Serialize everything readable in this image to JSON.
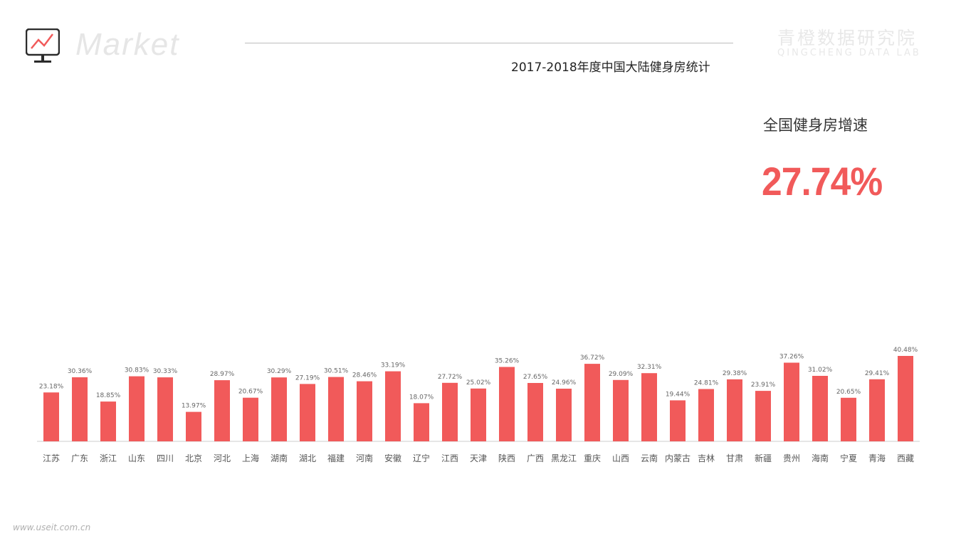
{
  "header": {
    "brand": "Market",
    "title": "2017-2018年度中国大陆健身房统计",
    "lab_name_cn": "青橙数据研究院",
    "lab_name_en": "QINGCHENG DATA LAB"
  },
  "kpi": {
    "label": "全国健身房增速",
    "value": "27.74%"
  },
  "footer": "www.useit.com.cn",
  "colors": {
    "bar": "#f15a5a",
    "accent": "#f15a5a",
    "axis": "#cccccc"
  },
  "chart_data": {
    "type": "bar",
    "title": "",
    "xlabel": "",
    "ylabel": "",
    "ylim": [
      0,
      45
    ],
    "grid": false,
    "legend": "none",
    "categories": [
      "江苏",
      "广东",
      "浙江",
      "山东",
      "四川",
      "北京",
      "河北",
      "上海",
      "湖南",
      "湖北",
      "福建",
      "河南",
      "安徽",
      "辽宁",
      "江西",
      "天津",
      "陕西",
      "广西",
      "黑龙江",
      "重庆",
      "山西",
      "云南",
      "内蒙古",
      "吉林",
      "甘肃",
      "新疆",
      "贵州",
      "海南",
      "宁夏",
      "青海",
      "西藏"
    ],
    "values": [
      23.18,
      30.36,
      18.85,
      30.83,
      30.33,
      13.97,
      28.97,
      20.67,
      30.29,
      27.19,
      30.51,
      28.46,
      33.19,
      18.07,
      27.72,
      25.02,
      35.26,
      27.65,
      24.96,
      36.72,
      29.09,
      32.31,
      19.44,
      24.81,
      29.38,
      23.91,
      37.26,
      31.02,
      20.65,
      29.41,
      40.48
    ],
    "value_labels": [
      "23.18%",
      "30.36%",
      "18.85%",
      "30.83%",
      "30.33%",
      "13.97%",
      "28.97%",
      "20.67%",
      "30.29%",
      "27.19%",
      "30.51%",
      "28.46%",
      "33.19%",
      "18.07%",
      "27.72%",
      "25.02%",
      "35.26%",
      "27.65%",
      "24.96%",
      "36.72%",
      "29.09%",
      "32.31%",
      "19.44%",
      "24.81%",
      "29.38%",
      "23.91%",
      "37.26%",
      "31.02%",
      "20.65%",
      "29.41%",
      "40.48%"
    ]
  }
}
